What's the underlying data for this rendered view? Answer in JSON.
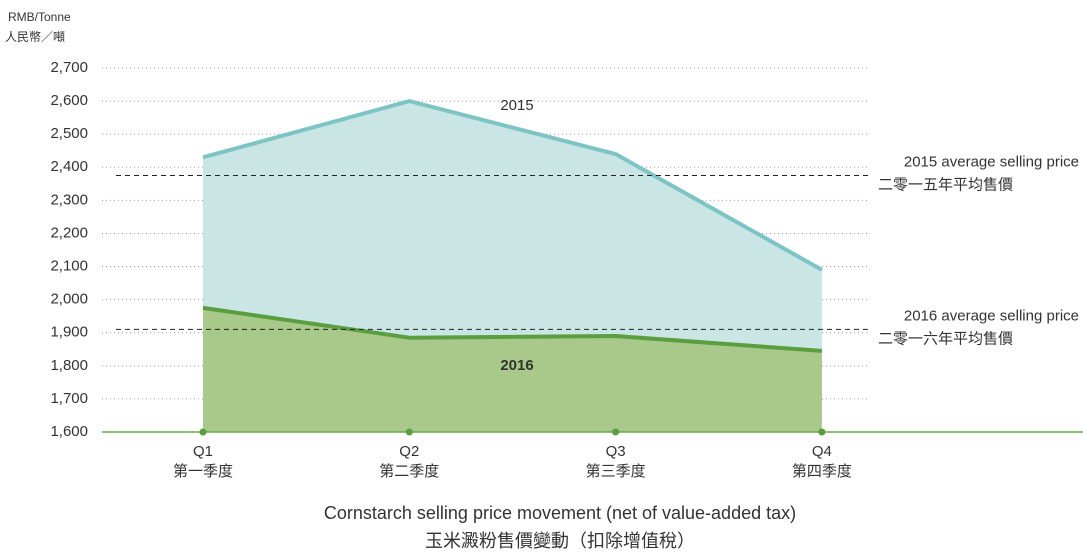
{
  "chart_data": {
    "type": "area",
    "y_unit": "RMB/Tonne",
    "y_unit_zh": "人民幣／噸",
    "categories": [
      "Q1",
      "Q2",
      "Q3",
      "Q4"
    ],
    "categories_zh": [
      "第一季度",
      "第二季度",
      "第三季度",
      "第四季度"
    ],
    "series": [
      {
        "name": "2015",
        "color": "#7dc4c4",
        "fill": "#c9e6e4",
        "values": [
          2430,
          2600,
          2440,
          2090
        ]
      },
      {
        "name": "2016",
        "color": "#5a9e3f",
        "fill": "#a8c98a",
        "values": [
          1975,
          1885,
          1890,
          1845
        ]
      }
    ],
    "reference_lines": [
      {
        "value": 2375,
        "label": "2015 average selling price",
        "label_zh": "二零一五年平均售價"
      },
      {
        "value": 1910,
        "label": "2016 average selling price",
        "label_zh": "二零一六年平均售價"
      }
    ],
    "ylim": [
      1600,
      2700
    ],
    "yticks": [
      {
        "value": 1600,
        "label": "1,600"
      },
      {
        "value": 1700,
        "label": "1,700"
      },
      {
        "value": 1800,
        "label": "1,800"
      },
      {
        "value": 1900,
        "label": "1,900"
      },
      {
        "value": 2000,
        "label": "2,000"
      },
      {
        "value": 2100,
        "label": "2,100"
      },
      {
        "value": 2200,
        "label": "2,200"
      },
      {
        "value": 2300,
        "label": "2,300"
      },
      {
        "value": 2400,
        "label": "2,400"
      },
      {
        "value": 2500,
        "label": "2,500"
      },
      {
        "value": 2600,
        "label": "2,600"
      },
      {
        "value": 2700,
        "label": "2,700"
      }
    ],
    "grid": true,
    "caption": "Cornstarch selling price movement (net of value-added tax)",
    "caption_zh": "玉米澱粉售價變動（扣除增值稅）"
  }
}
